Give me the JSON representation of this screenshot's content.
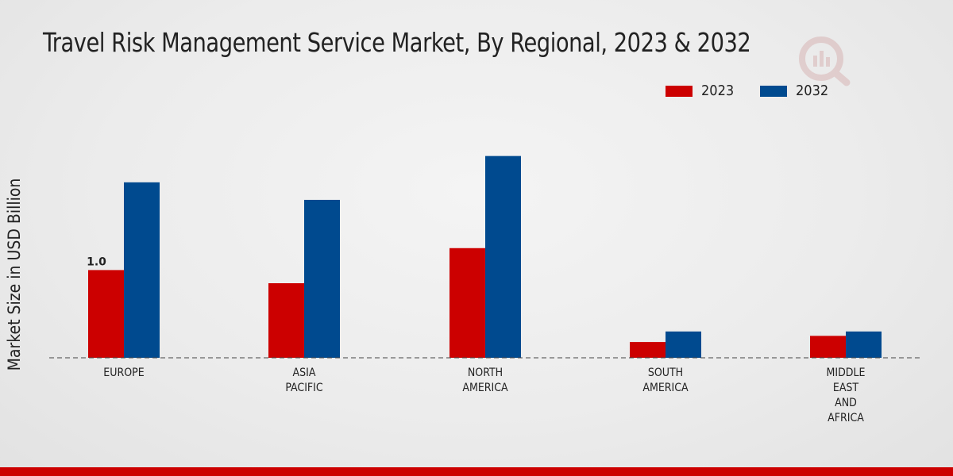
{
  "chart_data": {
    "type": "bar",
    "title": "Travel Risk Management Service Market, By Regional, 2023 & 2032",
    "xlabel": "",
    "ylabel": "Market Size in USD Billion",
    "categories": [
      "EUROPE",
      "ASIA PACIFIC",
      "NORTH AMERICA",
      "SOUTH AMERICA",
      "MIDDLE EAST AND AFRICA"
    ],
    "category_lines": [
      [
        "EUROPE"
      ],
      [
        "ASIA",
        "PACIFIC"
      ],
      [
        "NORTH",
        "AMERICA"
      ],
      [
        "SOUTH",
        "AMERICA"
      ],
      [
        "MIDDLE",
        "EAST",
        "AND",
        "AFRICA"
      ]
    ],
    "series": [
      {
        "name": "2023",
        "color": "#cc0000",
        "values": [
          1.0,
          0.85,
          1.25,
          0.18,
          0.25
        ]
      },
      {
        "name": "2032",
        "color": "#004a8f",
        "values": [
          2.0,
          1.8,
          2.3,
          0.3,
          0.3
        ]
      }
    ],
    "data_labels": [
      {
        "series": 0,
        "index": 0,
        "text": "1.0"
      }
    ],
    "ylim": [
      0,
      3.4
    ],
    "grid": false,
    "legend_position": "top-right"
  }
}
